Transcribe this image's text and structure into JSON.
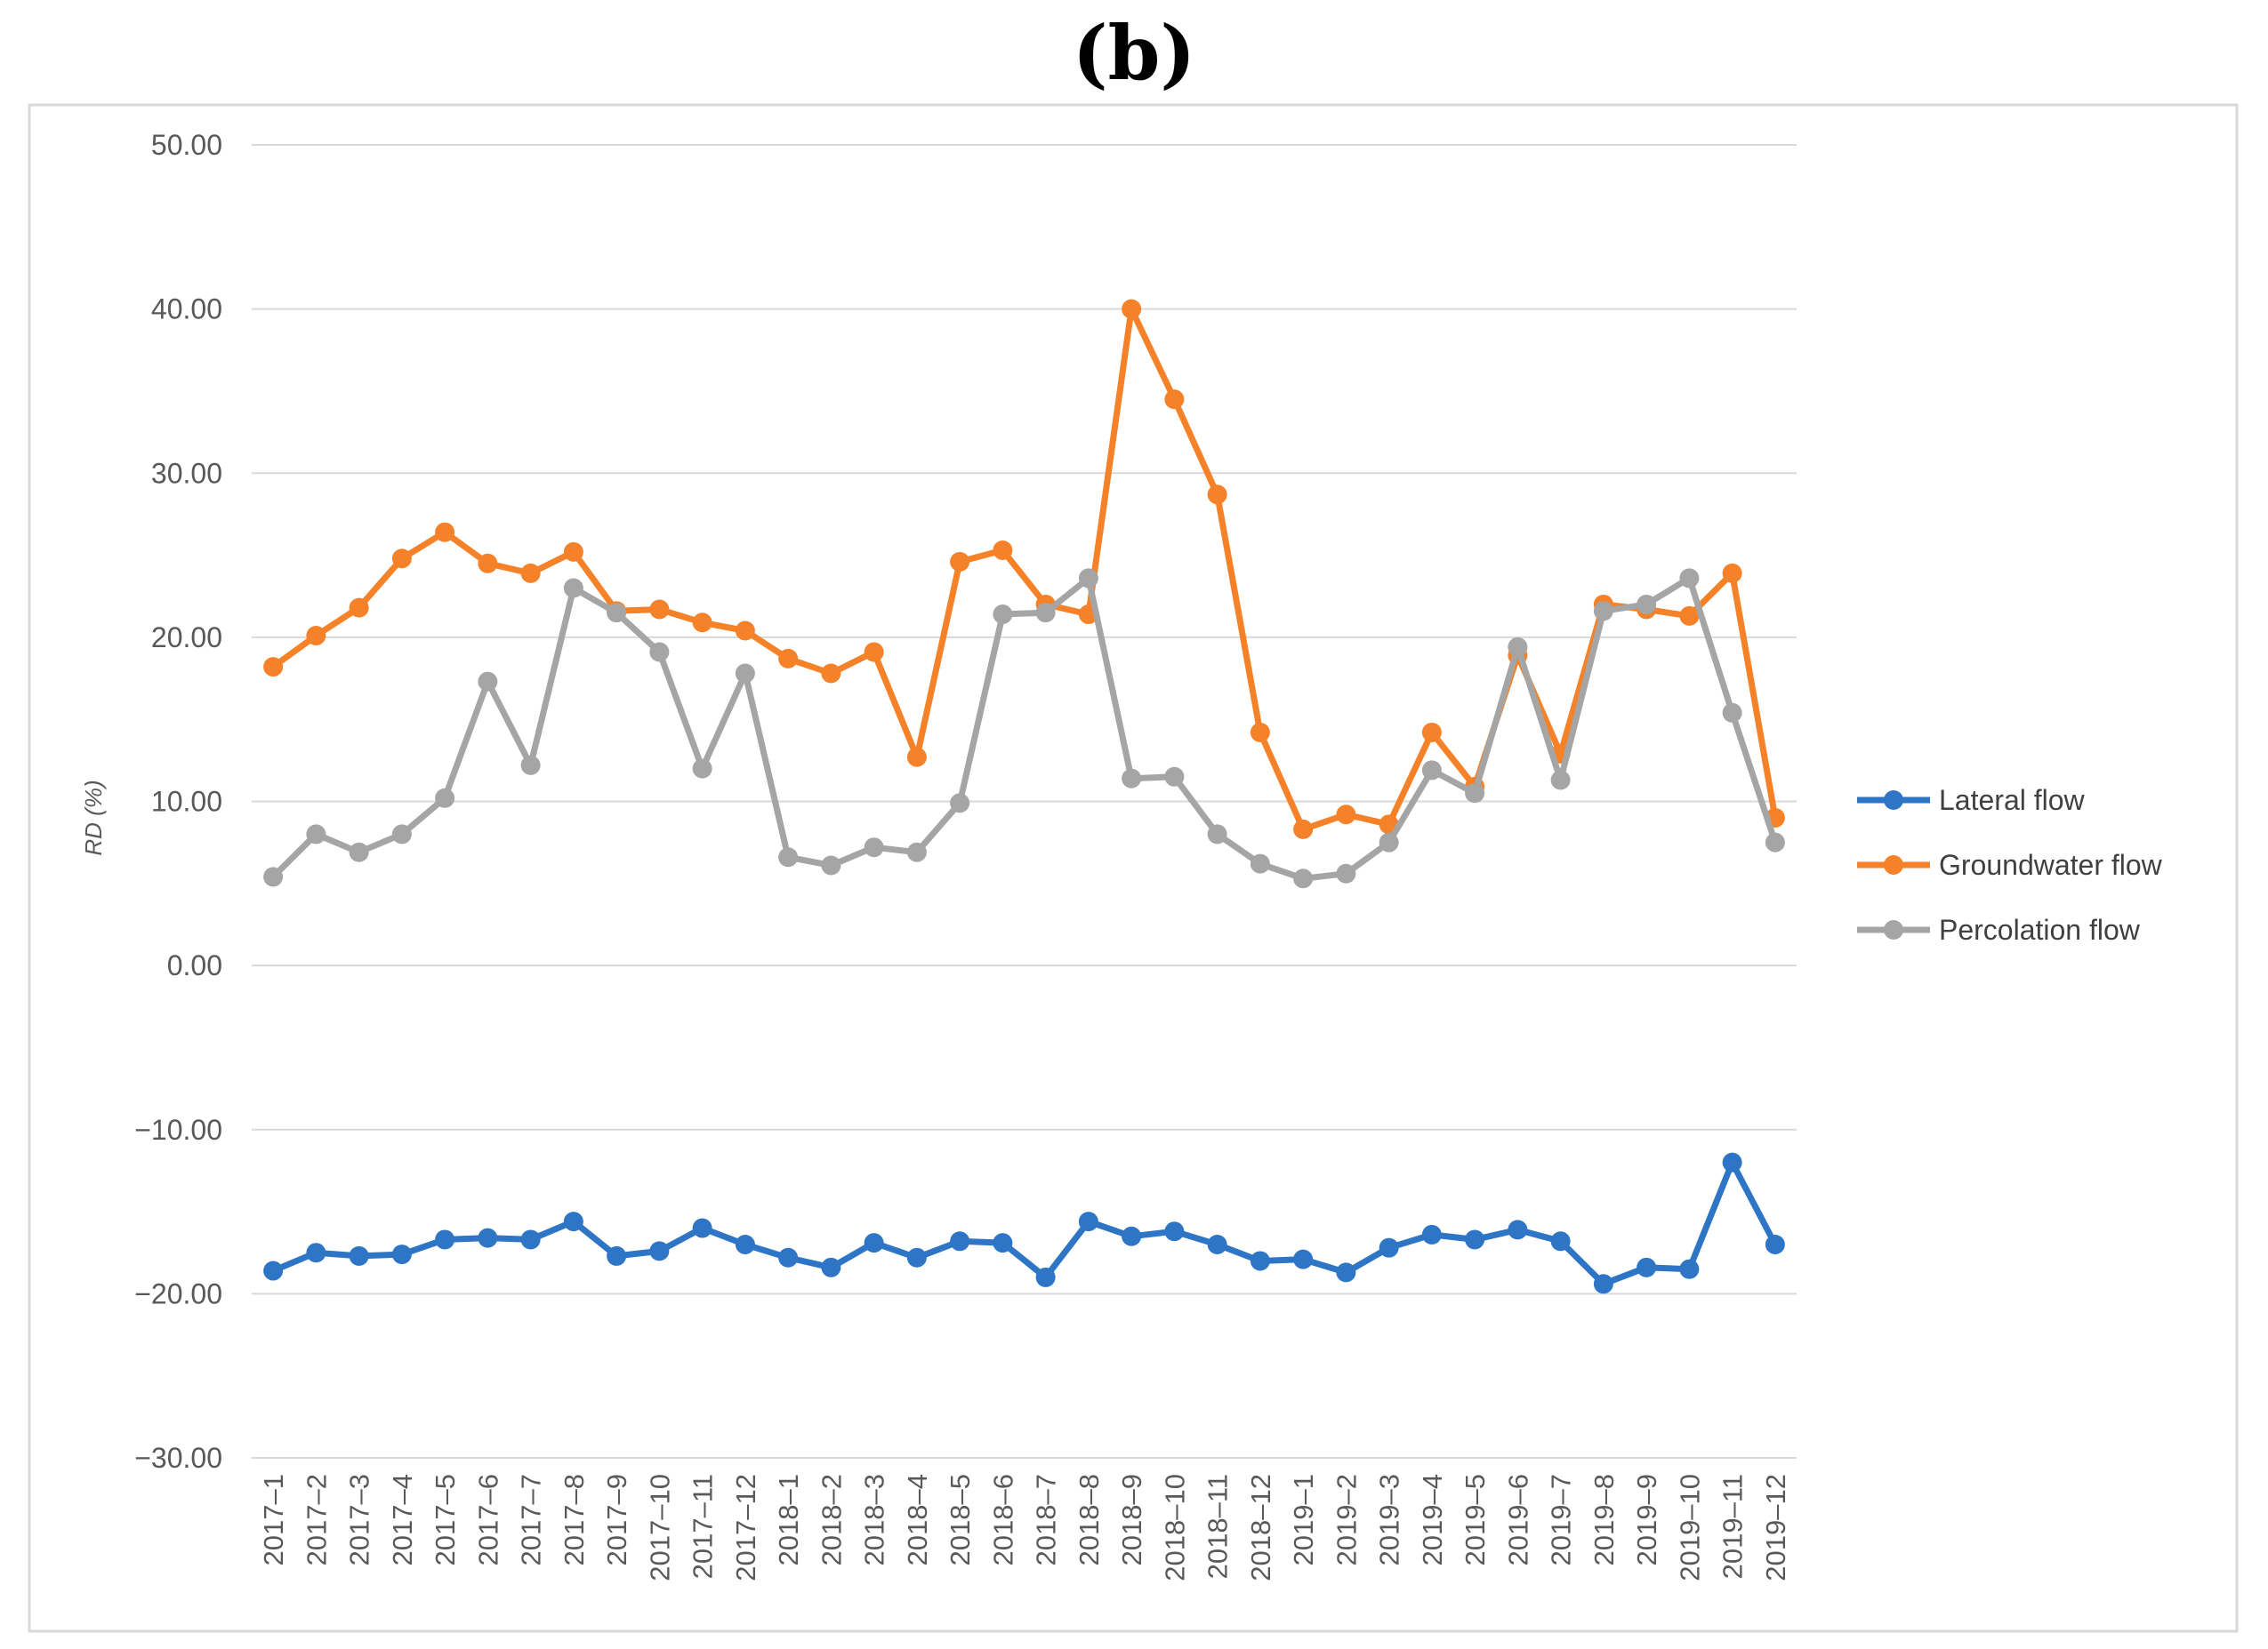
{
  "chart_data": {
    "type": "line",
    "title": "(b)",
    "ylabel": "RD (%)",
    "xlabel": "",
    "ylim": [
      -30,
      50
    ],
    "yticks": [
      50,
      40,
      30,
      20,
      10,
      0,
      -10,
      -20,
      -30
    ],
    "ytick_labels": [
      "50.00",
      "40.00",
      "30.00",
      "20.00",
      "10.00",
      "0.00",
      "−10.00",
      "−20.00",
      "−30.00"
    ],
    "grid": true,
    "legend_position": "right",
    "categories": [
      "2017–1",
      "2017–2",
      "2017–3",
      "2017–4",
      "2017–5",
      "2017–6",
      "2017–7",
      "2017–8",
      "2017–9",
      "2017–10",
      "2017–11",
      "2017–12",
      "2018–1",
      "2018–2",
      "2018–3",
      "2018–4",
      "2018–5",
      "2018–6",
      "2018–7",
      "2018–8",
      "2018–9",
      "2018–10",
      "2018–11",
      "2018–12",
      "2019–1",
      "2019–2",
      "2019–3",
      "2019–4",
      "2019–5",
      "2019–6",
      "2019–7",
      "2019–8",
      "2019–9",
      "2019–10",
      "2019–11",
      "2019–12"
    ],
    "series": [
      {
        "name": "Lateral flow",
        "color": "#2E75C6",
        "values": [
          -18.6,
          -17.5,
          -17.7,
          -17.6,
          -16.7,
          -16.6,
          -16.7,
          -15.6,
          -17.7,
          -17.4,
          -16.0,
          -17.0,
          -17.8,
          -18.4,
          -16.9,
          -17.8,
          -16.8,
          -16.9,
          -19.0,
          -15.6,
          -16.5,
          -16.2,
          -17.0,
          -18.0,
          -17.9,
          -18.7,
          -17.2,
          -16.4,
          -16.7,
          -16.1,
          -16.8,
          -19.4,
          -18.4,
          -18.5,
          -12.0,
          -17.0
        ]
      },
      {
        "name": "Groundwater flow",
        "color": "#F58229",
        "values": [
          18.2,
          20.1,
          21.8,
          24.8,
          26.4,
          24.5,
          23.9,
          25.2,
          21.6,
          21.7,
          20.9,
          20.4,
          18.7,
          17.8,
          19.1,
          12.7,
          24.6,
          25.3,
          22.0,
          21.4,
          40.0,
          34.5,
          28.7,
          14.2,
          8.3,
          9.2,
          8.6,
          14.2,
          10.9,
          18.9,
          12.9,
          22.0,
          21.7,
          21.3,
          23.9,
          9.0
        ]
      },
      {
        "name": "Percolation flow",
        "color": "#A5A5A5",
        "values": [
          5.4,
          8.0,
          6.9,
          8.0,
          10.2,
          17.3,
          12.2,
          23.0,
          21.5,
          19.1,
          12.0,
          17.8,
          6.6,
          6.1,
          7.2,
          6.9,
          9.9,
          21.4,
          21.5,
          23.6,
          11.4,
          11.5,
          8.0,
          6.2,
          5.3,
          5.6,
          7.5,
          11.9,
          10.5,
          19.4,
          11.3,
          21.6,
          22.0,
          23.6,
          15.4,
          7.5
        ]
      }
    ]
  }
}
